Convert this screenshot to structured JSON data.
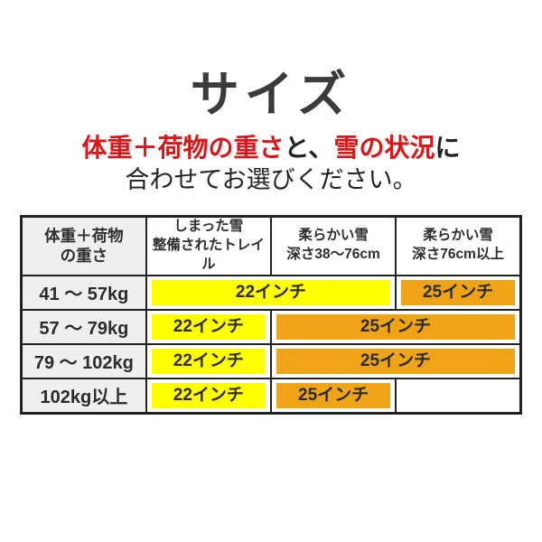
{
  "page": {
    "title": "サイズ",
    "subtitle": {
      "seg_red1": "体重＋荷物の重さ",
      "seg_black1": "と、",
      "seg_red2": "雪の状況",
      "seg_black2": "に",
      "line2": "合わせてお選びください。"
    }
  },
  "table": {
    "headers": [
      {
        "line1": "体重＋荷物",
        "line2": "の重さ"
      },
      {
        "line1": "しまった雪",
        "line2": "整備されたトレイル"
      },
      {
        "line1": "柔らかい雪",
        "line2": "深さ38〜76cm"
      },
      {
        "line1": "柔らかい雪",
        "line2": "深さ76cm以上"
      }
    ],
    "rows": [
      {
        "label": "41 〜 57kg",
        "bars": [
          {
            "size": "22インチ",
            "color": "yellow",
            "span": 2
          },
          {
            "size": "25インチ",
            "color": "orange",
            "span": 1
          }
        ]
      },
      {
        "label": "57 〜 79kg",
        "bars": [
          {
            "size": "22インチ",
            "color": "yellow",
            "span": 1
          },
          {
            "size": "25インチ",
            "color": "orange",
            "span": 2
          }
        ]
      },
      {
        "label": "79 〜 102kg",
        "bars": [
          {
            "size": "22インチ",
            "color": "yellow",
            "span": 1
          },
          {
            "size": "25インチ",
            "color": "orange",
            "span": 2
          }
        ]
      },
      {
        "label": "102kg以上",
        "bars": [
          {
            "size": "22インチ",
            "color": "yellow",
            "span": 1
          },
          {
            "size": "25インチ",
            "color": "orange",
            "span": 1
          }
        ],
        "empty_last_cell": ""
      }
    ]
  },
  "chart_data": {
    "type": "table",
    "title": "サイズ",
    "subtitle": "体重＋荷物の重さと、雪の状況に合わせてお選びください。",
    "columns": [
      "体重＋荷物の重さ",
      "しまった雪 整備されたトレイル",
      "柔らかい雪 深さ38〜76cm",
      "柔らかい雪 深さ76cm以上"
    ],
    "rows": [
      [
        "41 〜 57kg",
        "22インチ",
        "22インチ",
        "25インチ"
      ],
      [
        "57 〜 79kg",
        "22インチ",
        "25インチ",
        "25インチ"
      ],
      [
        "79 〜 102kg",
        "22インチ",
        "25インチ",
        "25インチ"
      ],
      [
        "102kg以上",
        "22インチ",
        "25インチ",
        ""
      ]
    ],
    "legend": {
      "22インチ": "#ffff00",
      "25インチ": "#efa417"
    },
    "layout": "bars spanning multiple snow-condition columns share one highlighted cell"
  },
  "colors": {
    "accent_red": "#d71718",
    "bar_yellow": "#ffff00",
    "bar_orange": "#efa417",
    "header_gray": "#efefef",
    "table_border": "#222222",
    "text_dark": "#333333"
  }
}
